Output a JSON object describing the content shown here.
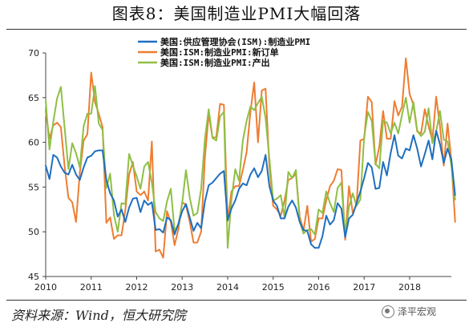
{
  "header": {
    "title": "图表8：美国制造业PMI大幅回落"
  },
  "footer": {
    "source": "资料来源：Wind，恒大研究院",
    "watermark": "泽平宏观"
  },
  "chart_data": {
    "type": "line",
    "title": "图表8：美国制造业PMI大幅回落",
    "xlabel": "",
    "ylabel": "",
    "xlim": [
      2010,
      2018.917
    ],
    "ylim": [
      45,
      70
    ],
    "yticks": [
      45,
      50,
      55,
      60,
      65,
      70
    ],
    "xticks": [
      "2010",
      "2011",
      "2012",
      "2013",
      "2014",
      "2015",
      "2016",
      "2017",
      "2018"
    ],
    "grid": false,
    "legend_position": "top-center",
    "series": [
      {
        "name": "美国:供应管理协会(ISM):制造业PMI",
        "color": "#1f6fbf",
        "values": [
          57.4,
          55.9,
          58.6,
          58.3,
          57.3,
          56.6,
          56.4,
          57.5,
          56.4,
          55.8,
          57.2,
          58.3,
          58.5,
          59.0,
          59.1,
          59.1,
          55.8,
          54.3,
          53.5,
          51.7,
          52.5,
          51.1,
          52.7,
          53.7,
          53.8,
          52.2,
          53.5,
          53.0,
          53.3,
          50.2,
          50.3,
          49.9,
          51.6,
          51.3,
          49.7,
          50.9,
          52.3,
          53.1,
          51.6,
          50.1,
          51.0,
          50.4,
          53.4,
          55.2,
          55.5,
          56.0,
          56.5,
          56.8,
          51.3,
          52.6,
          53.5,
          54.8,
          55.4,
          55.2,
          56.4,
          57.1,
          56.1,
          56.8,
          58.6,
          55.1,
          53.5,
          52.9,
          51.5,
          51.5,
          52.8,
          53.5,
          52.7,
          51.1,
          50.2,
          50.1,
          48.6,
          48.2,
          48.2,
          49.5,
          51.8,
          50.8,
          51.3,
          53.2,
          52.6,
          49.4,
          51.5,
          51.9,
          53.2,
          54.5,
          56.0,
          57.7,
          57.2,
          54.8,
          54.9,
          57.8,
          56.3,
          58.8,
          60.8,
          58.5,
          58.2,
          59.3,
          59.1,
          60.8,
          59.3,
          57.3,
          58.7,
          60.2,
          58.1,
          61.3,
          59.8,
          57.7,
          59.3,
          58.1,
          54.1
        ]
      },
      {
        "name": "美国:ISM:制造业PMI:新订单",
        "color": "#ee7d31",
        "values": [
          63.5,
          60.4,
          61.9,
          62.2,
          61.7,
          57.3,
          53.8,
          53.3,
          51.1,
          56.6,
          60.2,
          60.9,
          67.8,
          64.5,
          63.2,
          61.7,
          51.0,
          51.6,
          49.2,
          49.6,
          49.6,
          52.4,
          56.4,
          57.8,
          54.5,
          54.1,
          54.5,
          53.5,
          60.1,
          47.8,
          48.0,
          47.1,
          52.3,
          51.1,
          48.5,
          50.3,
          53.3,
          53.0,
          51.1,
          48.8,
          48.8,
          50.0,
          58.3,
          63.2,
          60.5,
          60.6,
          64.3,
          64.2,
          51.2,
          54.5,
          55.1,
          55.1,
          56.9,
          58.9,
          63.4,
          66.7,
          60.0,
          65.8,
          66.0,
          57.3,
          52.9,
          52.5,
          51.8,
          53.5,
          55.8,
          56.0,
          56.5,
          51.7,
          50.1,
          52.9,
          48.9,
          49.2,
          51.5,
          51.5,
          53.5,
          55.1,
          55.7,
          57.0,
          56.9,
          49.1,
          55.1,
          52.1,
          53.0,
          60.2,
          60.4,
          65.1,
          64.5,
          57.5,
          59.5,
          63.5,
          60.4,
          60.4,
          64.6,
          63.0,
          64.0,
          69.4,
          65.4,
          64.2,
          61.2,
          61.0,
          63.7,
          61.8,
          60.2,
          65.1,
          61.8,
          57.4,
          62.1,
          58.0,
          51.1
        ]
      },
      {
        "name": "美国:ISM:制造业PMI:产出",
        "color": "#8fbf45",
        "values": [
          64.7,
          59.2,
          62.3,
          64.9,
          66.2,
          61.6,
          57.0,
          59.9,
          58.8,
          57.2,
          61.8,
          63.2,
          63.2,
          66.3,
          62.1,
          61.4,
          54.9,
          56.5,
          51.9,
          50.0,
          53.2,
          53.1,
          58.7,
          57.4,
          56.2,
          54.8,
          57.3,
          57.8,
          55.5,
          52.2,
          51.5,
          51.2,
          53.4,
          54.8,
          50.1,
          50.8,
          53.2,
          56.9,
          53.8,
          51.8,
          52.1,
          54.8,
          60.4,
          63.7,
          60.5,
          60.2,
          62.9,
          63.4,
          48.2,
          53.6,
          57.0,
          55.7,
          60.2,
          62.4,
          64.0,
          63.6,
          64.4,
          65.1,
          62.7,
          58.2,
          53.5,
          53.7,
          54.1,
          51.6,
          56.7,
          56.0,
          56.9,
          51.2,
          49.8,
          50.2,
          50.3,
          49.7,
          52.5,
          52.1,
          54.5,
          53.2,
          52.2,
          54.9,
          55.5,
          49.6,
          52.8,
          54.3,
          52.9,
          53.6,
          60.6,
          63.4,
          62.4,
          57.6,
          57.1,
          62.4,
          62.2,
          61.0,
          62.2,
          61.0,
          63.1,
          65.0,
          62.2,
          64.5,
          61.3,
          60.7,
          61.2,
          63.8,
          59.9,
          61.2,
          63.5,
          60.3,
          60.1,
          57.4,
          53.6
        ]
      }
    ]
  }
}
